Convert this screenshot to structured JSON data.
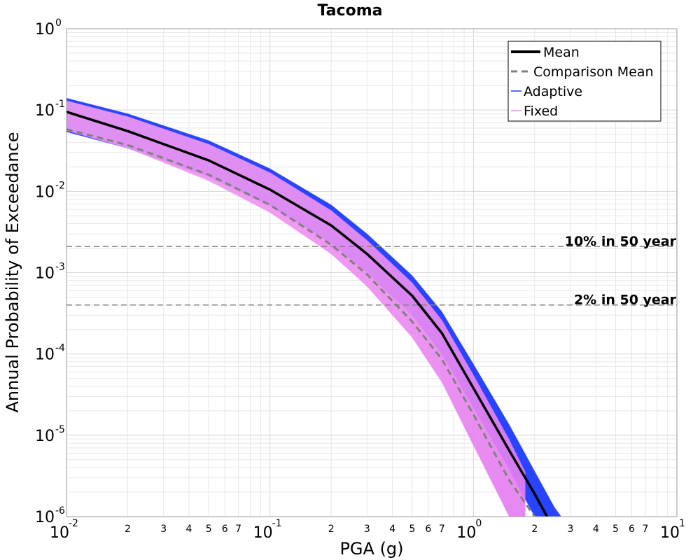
{
  "chart_data": {
    "type": "line",
    "title": "Tacoma",
    "xlabel": "PGA (g)",
    "ylabel": "Annual Probability of Exceedance",
    "x_scale": "log",
    "y_scale": "log",
    "xlim": [
      0.01,
      10
    ],
    "ylim": [
      1e-06,
      1
    ],
    "grid": true,
    "legend_position": "top-right",
    "x_major_ticks": [
      {
        "base": "10",
        "exp": "-2"
      },
      {
        "base": "10",
        "exp": "-1"
      },
      {
        "base": "10",
        "exp": "0"
      },
      {
        "base": "10",
        "exp": "1"
      }
    ],
    "y_major_ticks": [
      {
        "base": "10",
        "exp": "0"
      },
      {
        "base": "10",
        "exp": "-1"
      },
      {
        "base": "10",
        "exp": "-2"
      },
      {
        "base": "10",
        "exp": "-3"
      },
      {
        "base": "10",
        "exp": "-4"
      },
      {
        "base": "10",
        "exp": "-5"
      },
      {
        "base": "10",
        "exp": "-6"
      }
    ],
    "x_minor_tick_labels": [
      "2",
      "3",
      "4",
      "5",
      "6",
      "7"
    ],
    "reference_lines": [
      {
        "label": "10% in 50 year",
        "y": 0.0021
      },
      {
        "label": "2% in 50 year",
        "y": 0.0004
      }
    ],
    "series": [
      {
        "name": "Mean",
        "style": "solid-thick",
        "color": "#000000",
        "x": [
          0.01,
          0.02,
          0.05,
          0.1,
          0.2,
          0.3,
          0.5,
          0.7,
          1.0,
          1.5,
          2.0,
          2.3
        ],
        "y": [
          0.095,
          0.055,
          0.024,
          0.0105,
          0.0038,
          0.0017,
          0.00052,
          0.00018,
          3.8e-05,
          6.5e-06,
          1.9e-06,
          1e-06
        ]
      },
      {
        "name": "Comparison Mean",
        "style": "dashed",
        "color": "#808080",
        "x": [
          0.01,
          0.02,
          0.05,
          0.1,
          0.2,
          0.3,
          0.5,
          0.7,
          1.0,
          1.5,
          2.0
        ],
        "y": [
          0.058,
          0.037,
          0.016,
          0.0068,
          0.0022,
          0.00095,
          0.00025,
          8.6e-05,
          1.8e-05,
          2.8e-06,
          1e-06
        ]
      },
      {
        "name": "Adaptive",
        "style": "band",
        "color": "#1f3cff",
        "x": [
          0.01,
          0.02,
          0.05,
          0.1,
          0.2,
          0.3,
          0.5,
          0.7,
          1.0,
          1.5,
          2.0,
          2.5,
          2.7
        ],
        "y_upper": [
          0.14,
          0.09,
          0.042,
          0.019,
          0.0068,
          0.003,
          0.00092,
          0.00033,
          7.5e-05,
          1.35e-05,
          3.6e-06,
          1.3e-06,
          1e-06
        ],
        "y_lower": [
          0.054,
          0.034,
          0.015,
          0.0066,
          0.0023,
          0.001,
          0.0003,
          0.0001,
          2.2e-05,
          3.8e-06,
          1e-06,
          4e-07,
          3e-07
        ]
      },
      {
        "name": "Fixed",
        "style": "band",
        "color": "#ee82ee",
        "x": [
          0.01,
          0.02,
          0.05,
          0.1,
          0.2,
          0.3,
          0.5,
          0.7,
          1.0,
          1.5,
          1.8
        ],
        "y_upper": [
          0.13,
          0.083,
          0.038,
          0.017,
          0.0058,
          0.0025,
          0.00075,
          0.00026,
          5.5e-05,
          8.8e-06,
          3.5e-06
        ],
        "y_lower": [
          0.056,
          0.034,
          0.0135,
          0.0055,
          0.0017,
          0.00068,
          0.00016,
          4.5e-05,
          7.5e-06,
          1e-06,
          4e-07
        ]
      }
    ]
  }
}
